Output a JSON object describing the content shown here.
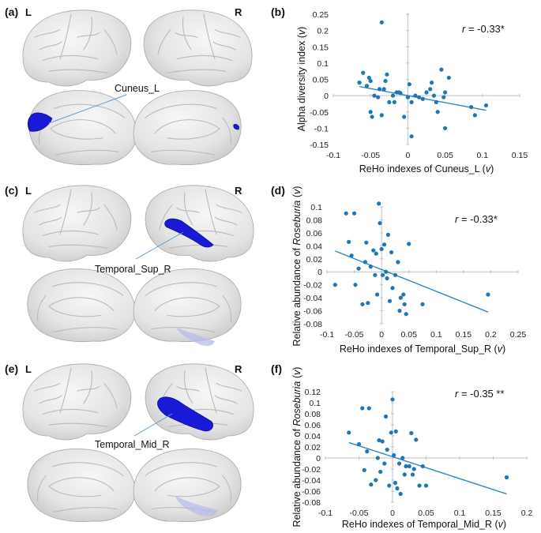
{
  "panels": {
    "a": {
      "label": "(a)",
      "left": "L",
      "right": "R",
      "region": "Cuneus_L"
    },
    "c": {
      "label": "(c)",
      "left": "L",
      "right": "R",
      "region": "Temporal_Sup_R"
    },
    "e": {
      "label": "(e)",
      "left": "L",
      "right": "R",
      "region": "Temporal_Mid_R"
    }
  },
  "colors": {
    "points": "#1f77b4",
    "fit": "#2e87c8",
    "region": "#1a1ad6",
    "axis": "#bfbfbf"
  },
  "chart_data": [
    {
      "panel": "(b)",
      "type": "scatter",
      "ylabel": "Alpha diversity index (v)",
      "ylabel_parts": [
        "Alpha diversity index (",
        "v",
        ")"
      ],
      "xlabel": "ReHo indexes of Cuneus_L (v)",
      "xlabel_parts": [
        "ReHo indexes of Cuneus_L (",
        "v",
        ")"
      ],
      "annotation_parts": [
        "r",
        " = -0.33*"
      ],
      "xlim": [
        -0.1,
        0.15
      ],
      "ylim": [
        -0.15,
        0.25
      ],
      "xticks": [
        "-0.1",
        "-0.05",
        "0",
        "0.05",
        "0.1",
        "0.15"
      ],
      "yticks": [
        "-0.15",
        "-0.1",
        "-0.05",
        "0",
        "0.05",
        "0.1",
        "0.15",
        "0.2",
        "0.25"
      ],
      "trendline": [
        [
          -0.065,
          0.028
        ],
        [
          0.105,
          -0.045
        ]
      ],
      "points": [
        [
          -0.065,
          0.04
        ],
        [
          -0.06,
          0.07
        ],
        [
          -0.055,
          0.03
        ],
        [
          -0.052,
          0.055
        ],
        [
          -0.05,
          0.045
        ],
        [
          -0.05,
          -0.05
        ],
        [
          -0.048,
          -0.065
        ],
        [
          -0.045,
          0.0
        ],
        [
          -0.04,
          -0.005
        ],
        [
          -0.038,
          0.02
        ],
        [
          -0.035,
          0.225
        ],
        [
          -0.035,
          -0.06
        ],
        [
          -0.032,
          0.02
        ],
        [
          -0.03,
          0.045
        ],
        [
          -0.028,
          0.065
        ],
        [
          -0.025,
          -0.02
        ],
        [
          -0.02,
          0.0
        ],
        [
          -0.018,
          -0.02
        ],
        [
          -0.015,
          0.01
        ],
        [
          -0.012,
          0.01
        ],
        [
          -0.01,
          0.008
        ],
        [
          -0.005,
          -0.065
        ],
        [
          0.0,
          -0.005
        ],
        [
          0.002,
          0.035
        ],
        [
          0.005,
          -0.125
        ],
        [
          0.005,
          -0.02
        ],
        [
          0.01,
          0.0
        ],
        [
          0.015,
          -0.005
        ],
        [
          0.02,
          -0.01
        ],
        [
          0.025,
          0.01
        ],
        [
          0.03,
          0.02
        ],
        [
          0.032,
          0.04
        ],
        [
          0.035,
          0.0
        ],
        [
          0.038,
          -0.02
        ],
        [
          0.04,
          -0.05
        ],
        [
          0.045,
          0.08
        ],
        [
          0.048,
          -0.005
        ],
        [
          0.05,
          0.01
        ],
        [
          0.05,
          -0.1
        ],
        [
          0.055,
          0.055
        ],
        [
          0.085,
          -0.035
        ],
        [
          0.09,
          -0.06
        ],
        [
          0.105,
          -0.03
        ]
      ]
    },
    {
      "panel": "(d)",
      "type": "scatter",
      "ylabel": "Relative abundance of Roseburia (v)",
      "ylabel_parts": [
        "Relative abundance of ",
        "Roseburia",
        " (",
        "v",
        ")"
      ],
      "xlabel": "ReHo indexes of Temporal_Sup_R (v)",
      "xlabel_parts": [
        "ReHo indexes of Temporal_Sup_R (",
        "v",
        ")"
      ],
      "annotation_parts": [
        "r",
        " = -0.33*"
      ],
      "xlim": [
        -0.1,
        0.25
      ],
      "ylim": [
        -0.08,
        0.1
      ],
      "xticks": [
        "-0.1",
        "-0.05",
        "0",
        "0.05",
        "0.1",
        "0.15",
        "0.2",
        "0.25"
      ],
      "yticks": [
        "-0.08",
        "-0.06",
        "-0.04",
        "-0.02",
        "0",
        "0.02",
        "0.04",
        "0.06",
        "0.08",
        "0.1"
      ],
      "trendline": [
        [
          -0.085,
          0.032
        ],
        [
          0.195,
          -0.062
        ]
      ],
      "points": [
        [
          -0.085,
          -0.02
        ],
        [
          -0.065,
          0.09
        ],
        [
          -0.06,
          0.046
        ],
        [
          -0.055,
          0.025
        ],
        [
          -0.05,
          0.09
        ],
        [
          -0.048,
          -0.02
        ],
        [
          -0.042,
          0.005
        ],
        [
          -0.035,
          -0.05
        ],
        [
          -0.03,
          0.015
        ],
        [
          -0.028,
          0.045
        ],
        [
          -0.025,
          -0.048
        ],
        [
          -0.02,
          0.008
        ],
        [
          -0.015,
          0.033
        ],
        [
          -0.012,
          -0.005
        ],
        [
          -0.01,
          0.028
        ],
        [
          -0.008,
          -0.035
        ],
        [
          -0.005,
          0.105
        ],
        [
          -0.003,
          0.075
        ],
        [
          0.0,
          0.035
        ],
        [
          0.002,
          -0.005
        ],
        [
          0.005,
          0.042
        ],
        [
          0.008,
          0.0
        ],
        [
          0.01,
          -0.01
        ],
        [
          0.012,
          0.057
        ],
        [
          0.015,
          -0.045
        ],
        [
          0.018,
          0.03
        ],
        [
          0.02,
          -0.025
        ],
        [
          0.025,
          -0.005
        ],
        [
          0.03,
          0.015
        ],
        [
          0.033,
          -0.06
        ],
        [
          0.035,
          -0.04
        ],
        [
          0.04,
          -0.035
        ],
        [
          0.042,
          -0.05
        ],
        [
          0.045,
          -0.065
        ],
        [
          0.05,
          0.043
        ],
        [
          0.075,
          -0.05
        ],
        [
          0.195,
          -0.035
        ]
      ]
    },
    {
      "panel": "(f)",
      "type": "scatter",
      "ylabel": "Relative abundance of Roseburia (v)",
      "ylabel_parts": [
        "Relative abundance of ",
        "Roseburia",
        " (",
        "v",
        ")"
      ],
      "xlabel": "ReHo indexes of Temporal_Mid_R (v)",
      "xlabel_parts": [
        "ReHo indexes of Temporal_Mid_R (",
        "v",
        ")"
      ],
      "annotation_parts": [
        "r",
        " = -0.35 **"
      ],
      "xlim": [
        -0.1,
        0.2
      ],
      "ylim": [
        -0.08,
        0.12
      ],
      "xticks": [
        "-0.1",
        "-0.05",
        "0",
        "0.05",
        "0.1",
        "0.15",
        "0.2"
      ],
      "yticks": [
        "-0.08",
        "-0.06",
        "-0.04",
        "-0.02",
        "0",
        "0.02",
        "0.04",
        "0.06",
        "0.08",
        "0.1",
        "0.12"
      ],
      "trendline": [
        [
          -0.065,
          0.028
        ],
        [
          0.17,
          -0.065
        ]
      ],
      "points": [
        [
          -0.065,
          0.046
        ],
        [
          -0.05,
          0.025
        ],
        [
          -0.045,
          0.09
        ],
        [
          -0.042,
          -0.022
        ],
        [
          -0.038,
          0.012
        ],
        [
          -0.035,
          0.09
        ],
        [
          -0.032,
          -0.048
        ],
        [
          -0.025,
          -0.04
        ],
        [
          -0.022,
          0.0
        ],
        [
          -0.02,
          0.032
        ],
        [
          -0.018,
          -0.025
        ],
        [
          -0.015,
          0.03
        ],
        [
          -0.012,
          -0.01
        ],
        [
          -0.01,
          0.075
        ],
        [
          -0.008,
          0.015
        ],
        [
          -0.005,
          -0.05
        ],
        [
          -0.002,
          0.046
        ],
        [
          0.0,
          0.106
        ],
        [
          0.002,
          0.005
        ],
        [
          0.004,
          -0.045
        ],
        [
          0.005,
          0.048
        ],
        [
          0.007,
          -0.055
        ],
        [
          0.01,
          -0.01
        ],
        [
          0.012,
          -0.065
        ],
        [
          0.015,
          0.0
        ],
        [
          0.018,
          -0.03
        ],
        [
          0.02,
          -0.015
        ],
        [
          0.025,
          -0.015
        ],
        [
          0.028,
          0.045
        ],
        [
          0.03,
          -0.03
        ],
        [
          0.032,
          -0.02
        ],
        [
          0.035,
          0.033
        ],
        [
          0.04,
          -0.05
        ],
        [
          0.045,
          -0.015
        ],
        [
          0.05,
          -0.05
        ],
        [
          0.17,
          -0.035
        ]
      ]
    }
  ]
}
